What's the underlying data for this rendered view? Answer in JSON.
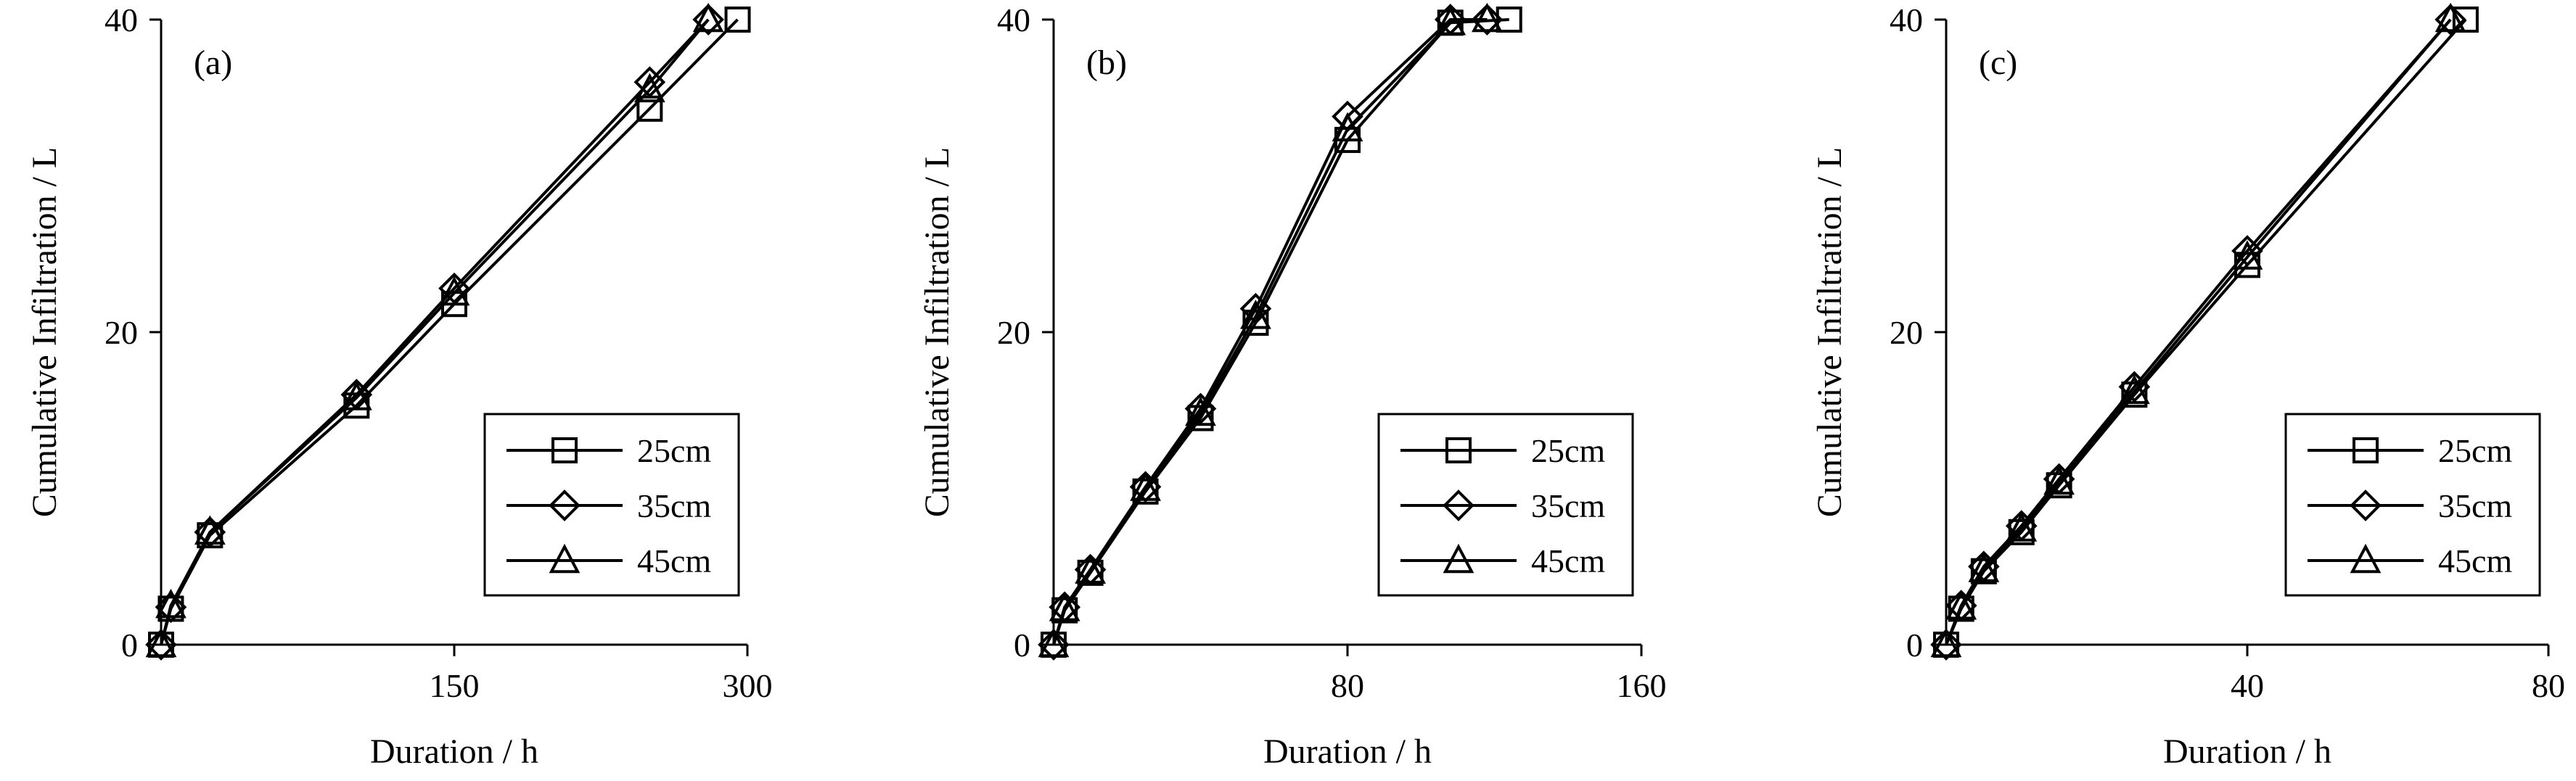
{
  "chart_data": [
    {
      "type": "line",
      "panel_label": "(a)",
      "xlabel": "Duration / h",
      "ylabel": "Cumulative Infiltration / L",
      "xlim": [
        0,
        300
      ],
      "ylim": [
        0,
        40
      ],
      "xticks": [
        150,
        300
      ],
      "yticks": [
        0,
        20,
        40
      ],
      "grid": false,
      "legend_position": "bottom-right",
      "series": [
        {
          "name": "25cm",
          "marker": "square",
          "x": [
            0,
            5,
            25,
            100,
            150,
            250,
            295
          ],
          "y": [
            0,
            2.3,
            7,
            15.3,
            21.8,
            34.3,
            40
          ]
        },
        {
          "name": "35cm",
          "marker": "diamond",
          "x": [
            0,
            5,
            25,
            100,
            150,
            250,
            280
          ],
          "y": [
            0,
            2.4,
            7.2,
            16,
            22.8,
            36,
            40
          ]
        },
        {
          "name": "45cm",
          "marker": "triangle",
          "x": [
            0,
            5,
            25,
            100,
            150,
            250,
            280
          ],
          "y": [
            0,
            2.5,
            7.2,
            15.8,
            22.5,
            35.5,
            40
          ]
        }
      ]
    },
    {
      "type": "line",
      "panel_label": "(b)",
      "xlabel": "Duration / h",
      "ylabel": "Cumulative Infiltration / L",
      "xlim": [
        0,
        160
      ],
      "ylim": [
        0,
        40
      ],
      "xticks": [
        80,
        160
      ],
      "yticks": [
        0,
        20,
        40
      ],
      "grid": false,
      "legend_position": "bottom-right",
      "series": [
        {
          "name": "25cm",
          "marker": "square",
          "x": [
            0,
            3,
            10,
            25,
            40,
            55,
            80,
            108,
            124
          ],
          "y": [
            0,
            2.2,
            4.6,
            9.8,
            14.5,
            20.6,
            32.3,
            39.8,
            40
          ]
        },
        {
          "name": "35cm",
          "marker": "diamond",
          "x": [
            0,
            3,
            10,
            25,
            40,
            55,
            80,
            108,
            118
          ],
          "y": [
            0,
            2.4,
            4.8,
            10.1,
            15.1,
            21.5,
            33.8,
            40,
            40
          ]
        },
        {
          "name": "45cm",
          "marker": "triangle",
          "x": [
            0,
            3,
            10,
            25,
            40,
            55,
            80,
            108,
            118
          ],
          "y": [
            0,
            2.3,
            4.7,
            10,
            14.8,
            21,
            33,
            39.8,
            40
          ]
        }
      ]
    },
    {
      "type": "line",
      "panel_label": "(c)",
      "xlabel": "Duration / h",
      "ylabel": "Cumulative Infiltration / L",
      "xlim": [
        0,
        80
      ],
      "ylim": [
        0,
        40
      ],
      "xticks": [
        40,
        80
      ],
      "yticks": [
        0,
        20,
        40
      ],
      "grid": false,
      "legend_position": "bottom-right",
      "series": [
        {
          "name": "25cm",
          "marker": "square",
          "x": [
            0,
            2,
            5,
            10,
            15,
            25,
            40,
            69
          ],
          "y": [
            0,
            2.3,
            4.7,
            7.2,
            10.2,
            16,
            24.3,
            40
          ]
        },
        {
          "name": "35cm",
          "marker": "diamond",
          "x": [
            0,
            2,
            5,
            10,
            15,
            25,
            40,
            67
          ],
          "y": [
            0,
            2.5,
            5,
            7.6,
            10.6,
            16.5,
            25.2,
            40
          ]
        },
        {
          "name": "45cm",
          "marker": "triangle",
          "x": [
            0,
            2,
            5,
            10,
            15,
            25,
            40,
            67
          ],
          "y": [
            0,
            2.4,
            4.8,
            7.4,
            10.4,
            16.2,
            24.8,
            40
          ]
        }
      ]
    }
  ]
}
